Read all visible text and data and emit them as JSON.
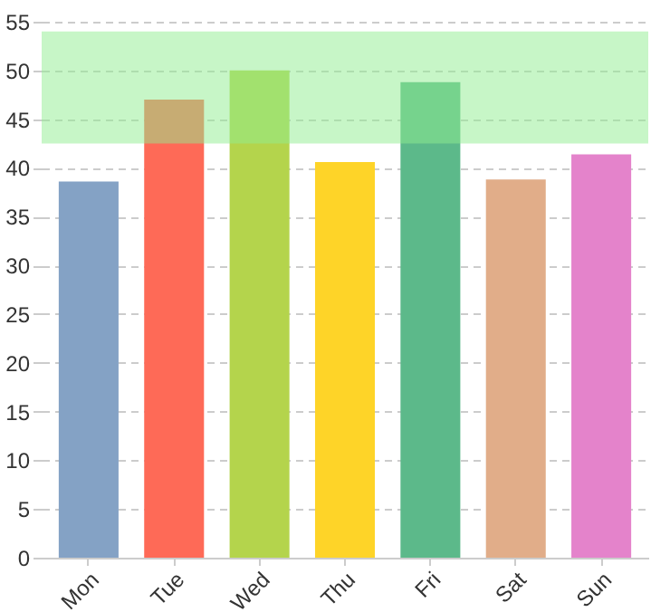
{
  "chart_data": {
    "type": "bar",
    "categories": [
      "Mon",
      "Tue",
      "Wed",
      "Thu",
      "Fri",
      "Sat",
      "Sun"
    ],
    "values": [
      38.6,
      47.0,
      50.0,
      40.6,
      48.8,
      38.8,
      41.4
    ],
    "colors": [
      "#84a2c5",
      "#fe6a57",
      "#b4d44c",
      "#fed428",
      "#5cb98a",
      "#e1ad89",
      "#e483cb"
    ],
    "ylim": [
      0,
      55
    ],
    "yticks": [
      0,
      5,
      10,
      15,
      20,
      25,
      30,
      35,
      40,
      45,
      50,
      55
    ],
    "grid": "y",
    "bands": [
      {
        "axis": "y",
        "from": 42.5,
        "to": 54,
        "color": "#90ee90"
      }
    ]
  }
}
